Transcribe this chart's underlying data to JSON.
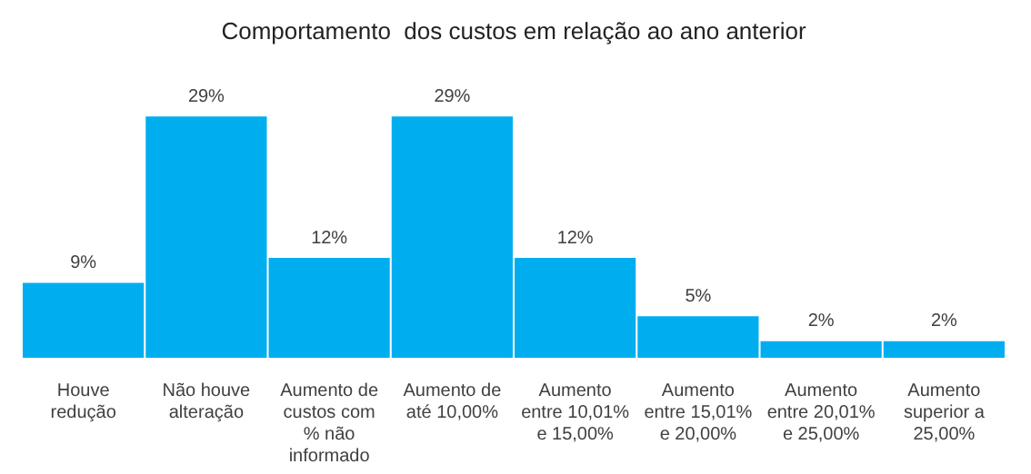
{
  "chart_data": {
    "type": "bar",
    "title": "Comportamento  dos custos em relação ao ano anterior",
    "categories": [
      "Houve redução",
      "Não houve alteração",
      "Aumento de custos com % não informado",
      "Aumento de até 10,00%",
      "Aumento entre 10,01% e 15,00%",
      "Aumento entre 15,01% e 20,00%",
      "Aumento entre 20,01% e 25,00%",
      "Aumento superior a 25,00%"
    ],
    "values": [
      9,
      29,
      12,
      29,
      12,
      5,
      2,
      2
    ],
    "value_labels": [
      "9%",
      "29%",
      "12%",
      "29%",
      "12%",
      "5%",
      "2%",
      "2%"
    ],
    "color": "#00aeef",
    "grid": false,
    "legend": false,
    "tick_labels": "x"
  }
}
